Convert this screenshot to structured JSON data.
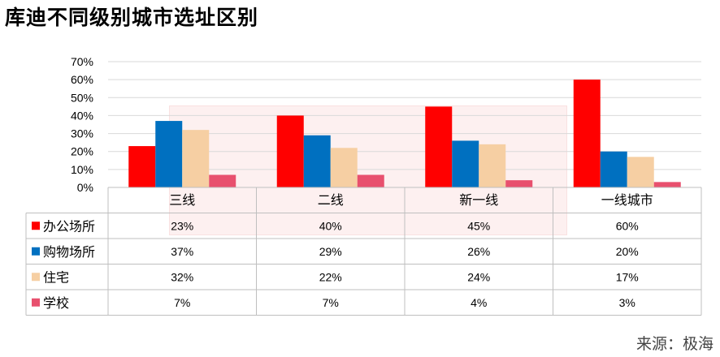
{
  "title": "库迪不同级别城市选址区别",
  "source": "来源：极海",
  "chart_data": {
    "type": "bar",
    "title": "库迪不同级别城市选址区别",
    "categories": [
      "三线",
      "二线",
      "新一线",
      "一线城市"
    ],
    "series": [
      {
        "name": "办公场所",
        "color": "#ff0000",
        "values": [
          23,
          40,
          45,
          60
        ],
        "labels": [
          "23%",
          "40%",
          "45%",
          "60%"
        ]
      },
      {
        "name": "购物场所",
        "color": "#0070c0",
        "values": [
          37,
          29,
          26,
          20
        ],
        "labels": [
          "37%",
          "29%",
          "26%",
          "20%"
        ]
      },
      {
        "name": "住宅",
        "color": "#f6cfa3",
        "values": [
          32,
          22,
          24,
          17
        ],
        "labels": [
          "32%",
          "22%",
          "24%",
          "17%"
        ]
      },
      {
        "name": "学校",
        "color": "#e8506e",
        "values": [
          7,
          7,
          4,
          3
        ],
        "labels": [
          "7%",
          "7%",
          "4%",
          "3%"
        ]
      }
    ],
    "y_ticks": [
      "0%",
      "10%",
      "20%",
      "30%",
      "40%",
      "50%",
      "60%",
      "70%"
    ],
    "ylim": [
      0,
      70
    ],
    "grid": true,
    "legend": "data-table"
  }
}
